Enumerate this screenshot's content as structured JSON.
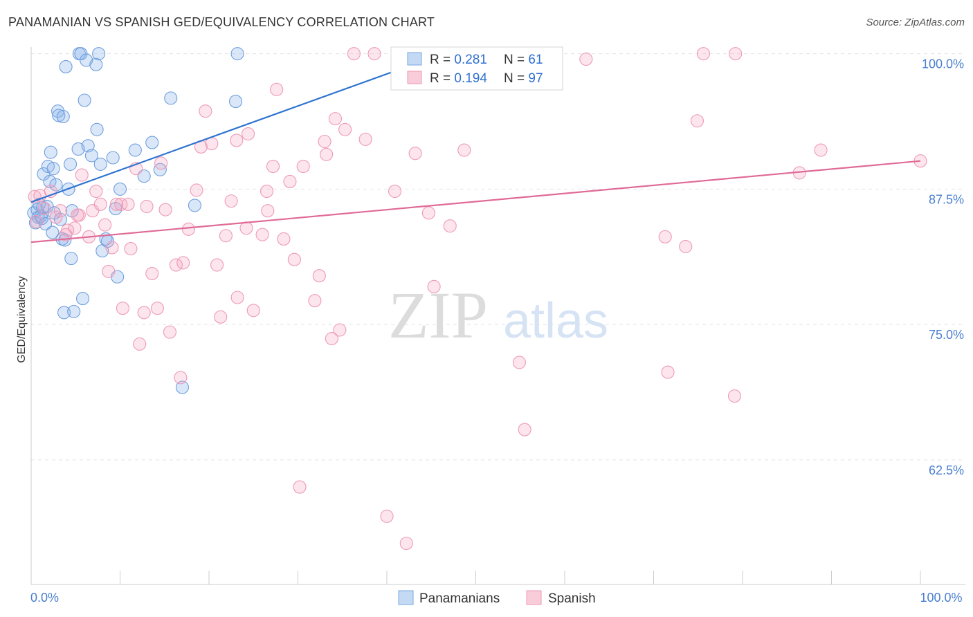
{
  "chart_data": {
    "type": "scatter",
    "title": "PANAMANIAN VS SPANISH GED/EQUIVALENCY CORRELATION CHART",
    "source": "Source: ZipAtlas.com",
    "ylabel": "GED/Equivalency",
    "xlabel": "",
    "xlim": [
      0,
      100
    ],
    "ylim": [
      51,
      101
    ],
    "x_tick_labels": [
      {
        "value": 0,
        "label": "0.0%"
      },
      {
        "value": 100,
        "label": "100.0%"
      }
    ],
    "y_tick_labels": [
      {
        "value": 100,
        "label": "100.0%"
      },
      {
        "value": 87.5,
        "label": "87.5%"
      },
      {
        "value": 75,
        "label": "75.0%"
      },
      {
        "value": 62.5,
        "label": "62.5%"
      }
    ],
    "grid": true,
    "watermark": {
      "zip": "ZIP",
      "atlas": "atlas"
    },
    "colors": {
      "panamanians": "#6f9fdc",
      "spanish": "#f28fae",
      "panamanians_line": "#2f74d0",
      "spanish_line": "#e06a96",
      "axis_label_blue": "#4a7fd0"
    },
    "legend_box": {
      "rows": [
        {
          "r_label": "R = ",
          "r_value": "0.281",
          "n_label": "N = ",
          "n_value": "61"
        },
        {
          "r_label": "R = ",
          "r_value": "0.194",
          "n_label": "N = ",
          "n_value": "97"
        }
      ]
    },
    "series": [
      {
        "name": "Panamanians",
        "trend": {
          "x": [
            0,
            48
          ],
          "y": [
            86.3,
            100.5
          ]
        },
        "points": [
          [
            0.3,
            85.3
          ],
          [
            0.5,
            84.4
          ],
          [
            0.7,
            85.6
          ],
          [
            0.8,
            84.9
          ],
          [
            0.9,
            86.1
          ],
          [
            1.1,
            85.0
          ],
          [
            1.2,
            84.8
          ],
          [
            1.3,
            85.8
          ],
          [
            1.4,
            88.9
          ],
          [
            1.6,
            84.3
          ],
          [
            1.8,
            85.9
          ],
          [
            1.9,
            89.6
          ],
          [
            2.1,
            88.2
          ],
          [
            2.2,
            90.9
          ],
          [
            2.4,
            83.5
          ],
          [
            2.5,
            89.4
          ],
          [
            2.6,
            85.3
          ],
          [
            2.8,
            87.9
          ],
          [
            3.0,
            94.7
          ],
          [
            3.1,
            94.3
          ],
          [
            3.3,
            84.7
          ],
          [
            3.5,
            82.9
          ],
          [
            3.6,
            94.2
          ],
          [
            3.7,
            76.1
          ],
          [
            3.8,
            82.8
          ],
          [
            3.9,
            98.8
          ],
          [
            4.2,
            87.5
          ],
          [
            4.4,
            89.8
          ],
          [
            4.5,
            81.1
          ],
          [
            4.6,
            85.5
          ],
          [
            4.8,
            76.2
          ],
          [
            5.3,
            91.2
          ],
          [
            5.4,
            100.0
          ],
          [
            5.6,
            100.0
          ],
          [
            5.8,
            77.4
          ],
          [
            6.0,
            95.7
          ],
          [
            6.2,
            99.4
          ],
          [
            6.4,
            91.5
          ],
          [
            6.8,
            90.6
          ],
          [
            7.3,
            99.0
          ],
          [
            7.4,
            93.0
          ],
          [
            7.6,
            100.0
          ],
          [
            7.8,
            89.8
          ],
          [
            8.0,
            81.8
          ],
          [
            8.4,
            82.9
          ],
          [
            8.6,
            82.7
          ],
          [
            9.2,
            90.4
          ],
          [
            9.5,
            85.7
          ],
          [
            9.7,
            79.4
          ],
          [
            10.0,
            87.5
          ],
          [
            11.7,
            91.1
          ],
          [
            12.7,
            88.7
          ],
          [
            13.6,
            91.8
          ],
          [
            14.5,
            89.3
          ],
          [
            15.7,
            95.9
          ],
          [
            17.0,
            69.2
          ],
          [
            18.4,
            86.0
          ],
          [
            23.0,
            95.6
          ],
          [
            23.2,
            100.0
          ],
          [
            41.7,
            100.0
          ],
          [
            46.2,
            100.0
          ]
        ]
      },
      {
        "name": "Spanish",
        "trend": {
          "x": [
            0,
            100
          ],
          "y": [
            82.6,
            90.1
          ]
        },
        "points": [
          [
            0.4,
            86.8
          ],
          [
            0.6,
            84.5
          ],
          [
            1.0,
            86.9
          ],
          [
            1.5,
            85.7
          ],
          [
            2.2,
            87.3
          ],
          [
            2.8,
            84.9
          ],
          [
            3.3,
            85.5
          ],
          [
            3.9,
            83.3
          ],
          [
            4.1,
            83.7
          ],
          [
            4.9,
            83.9
          ],
          [
            5.2,
            85.1
          ],
          [
            5.4,
            85.1
          ],
          [
            5.7,
            88.8
          ],
          [
            6.5,
            83.1
          ],
          [
            6.9,
            85.5
          ],
          [
            7.3,
            87.3
          ],
          [
            7.8,
            86.1
          ],
          [
            8.3,
            84.2
          ],
          [
            8.7,
            79.9
          ],
          [
            9.1,
            82.1
          ],
          [
            9.6,
            86.1
          ],
          [
            10.1,
            86.1
          ],
          [
            10.3,
            76.5
          ],
          [
            10.9,
            86.1
          ],
          [
            11.2,
            82.0
          ],
          [
            11.8,
            89.4
          ],
          [
            12.2,
            73.2
          ],
          [
            12.7,
            76.1
          ],
          [
            13.0,
            85.9
          ],
          [
            13.6,
            79.7
          ],
          [
            14.2,
            76.5
          ],
          [
            14.6,
            89.9
          ],
          [
            15.1,
            85.6
          ],
          [
            15.6,
            74.3
          ],
          [
            16.3,
            80.5
          ],
          [
            16.8,
            70.1
          ],
          [
            17.1,
            80.7
          ],
          [
            17.7,
            83.8
          ],
          [
            18.6,
            87.4
          ],
          [
            19.1,
            91.4
          ],
          [
            19.6,
            94.7
          ],
          [
            20.3,
            91.7
          ],
          [
            20.9,
            80.5
          ],
          [
            21.3,
            75.7
          ],
          [
            21.9,
            83.2
          ],
          [
            22.5,
            86.4
          ],
          [
            23.1,
            92.0
          ],
          [
            23.2,
            77.5
          ],
          [
            24.2,
            83.9
          ],
          [
            24.4,
            92.6
          ],
          [
            25.0,
            76.3
          ],
          [
            26.0,
            83.3
          ],
          [
            26.5,
            87.3
          ],
          [
            26.6,
            85.5
          ],
          [
            27.2,
            89.6
          ],
          [
            27.6,
            96.7
          ],
          [
            28.4,
            82.9
          ],
          [
            29.1,
            88.2
          ],
          [
            29.6,
            81.0
          ],
          [
            30.2,
            60.0
          ],
          [
            30.6,
            89.6
          ],
          [
            31.9,
            77.2
          ],
          [
            32.4,
            79.5
          ],
          [
            33.0,
            91.9
          ],
          [
            33.2,
            90.7
          ],
          [
            33.8,
            73.7
          ],
          [
            34.2,
            94.0
          ],
          [
            34.7,
            74.5
          ],
          [
            35.3,
            93.0
          ],
          [
            36.3,
            100.0
          ],
          [
            37.6,
            92.1
          ],
          [
            38.6,
            100.0
          ],
          [
            40.0,
            57.3
          ],
          [
            40.9,
            87.3
          ],
          [
            42.2,
            54.8
          ],
          [
            43.2,
            90.8
          ],
          [
            44.7,
            85.3
          ],
          [
            45.3,
            78.5
          ],
          [
            47.1,
            84.1
          ],
          [
            48.7,
            91.1
          ],
          [
            52.5,
            100.0
          ],
          [
            54.9,
            71.5
          ],
          [
            55.5,
            65.3
          ],
          [
            56.8,
            100.0
          ],
          [
            57.5,
            100.0
          ],
          [
            59.0,
            100.0
          ],
          [
            62.4,
            99.5
          ],
          [
            71.3,
            83.1
          ],
          [
            71.6,
            70.6
          ],
          [
            73.6,
            82.2
          ],
          [
            74.9,
            93.8
          ],
          [
            75.6,
            100.0
          ],
          [
            79.1,
            68.4
          ],
          [
            79.2,
            100.0
          ],
          [
            86.4,
            89.0
          ],
          [
            88.8,
            91.1
          ],
          [
            100.0,
            90.1
          ]
        ]
      }
    ]
  }
}
